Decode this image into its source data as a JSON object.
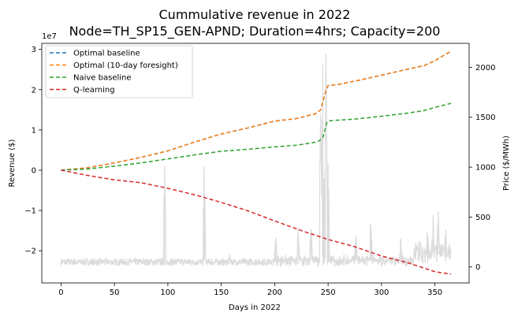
{
  "chart_data": {
    "type": "line",
    "title_line1": "Cummulative revenue in 2022",
    "title_line2": "Node=TH_SP15_GEN-APND; Duration=4hrs; Capacity=200",
    "xlabel": "Days in 2022",
    "ylabel": "Revenue ($)",
    "y2label": "Price ($/MWh)",
    "exponent_label": "1e7",
    "xlim": [
      -18,
      382
    ],
    "ylim": [
      -28000000,
      31500000
    ],
    "y2lim": [
      -160,
      2240
    ],
    "x_ticks": [
      0,
      50,
      100,
      150,
      200,
      250,
      300,
      350
    ],
    "x_tick_labels": [
      "0",
      "50",
      "100",
      "150",
      "200",
      "250",
      "300",
      "350"
    ],
    "y_ticks": [
      3,
      2,
      1,
      0,
      -1,
      -2
    ],
    "y_tick_labels": [
      "3",
      "2",
      "1",
      "0",
      "−1",
      "−2"
    ],
    "y2_ticks": [
      2000,
      1500,
      1000,
      500,
      0
    ],
    "y2_tick_labels": [
      "2000",
      "1500",
      "1000",
      "500",
      "0"
    ],
    "legend_position": "top-left",
    "series": [
      {
        "name": "Optimal baseline",
        "color": "#1f77b4",
        "style": "dashed",
        "points": [
          [
            0,
            0
          ],
          [
            25,
            600000
          ],
          [
            50,
            1800000
          ],
          [
            75,
            3200000
          ],
          [
            100,
            4800000
          ],
          [
            125,
            7000000
          ],
          [
            150,
            9000000
          ],
          [
            175,
            10500000
          ],
          [
            200,
            12200000
          ],
          [
            220,
            12800000
          ],
          [
            238,
            14000000
          ],
          [
            243,
            15000000
          ],
          [
            247,
            19000000
          ],
          [
            250,
            21000000
          ],
          [
            260,
            21300000
          ],
          [
            280,
            22400000
          ],
          [
            300,
            23600000
          ],
          [
            320,
            24800000
          ],
          [
            340,
            26000000
          ],
          [
            350,
            27200000
          ],
          [
            360,
            28800000
          ],
          [
            365,
            29500000
          ]
        ]
      },
      {
        "name": "Optimal (10-day foresight)",
        "color": "#ff7f0e",
        "style": "dashed",
        "points": [
          [
            0,
            0
          ],
          [
            25,
            600000
          ],
          [
            50,
            1800000
          ],
          [
            75,
            3200000
          ],
          [
            100,
            4800000
          ],
          [
            125,
            7000000
          ],
          [
            150,
            9000000
          ],
          [
            175,
            10500000
          ],
          [
            200,
            12200000
          ],
          [
            220,
            12800000
          ],
          [
            238,
            14000000
          ],
          [
            243,
            15000000
          ],
          [
            247,
            19000000
          ],
          [
            250,
            21000000
          ],
          [
            260,
            21300000
          ],
          [
            280,
            22400000
          ],
          [
            300,
            23600000
          ],
          [
            320,
            24800000
          ],
          [
            340,
            26000000
          ],
          [
            350,
            27200000
          ],
          [
            360,
            28800000
          ],
          [
            365,
            29500000
          ]
        ]
      },
      {
        "name": "Naive baseline",
        "color": "#2ca02c",
        "style": "dashed",
        "points": [
          [
            0,
            0
          ],
          [
            25,
            300000
          ],
          [
            50,
            1000000
          ],
          [
            75,
            1800000
          ],
          [
            100,
            2800000
          ],
          [
            125,
            3800000
          ],
          [
            150,
            4700000
          ],
          [
            175,
            5200000
          ],
          [
            200,
            5800000
          ],
          [
            220,
            6200000
          ],
          [
            240,
            7000000
          ],
          [
            245,
            8000000
          ],
          [
            249,
            12000000
          ],
          [
            252,
            12300000
          ],
          [
            275,
            12700000
          ],
          [
            300,
            13400000
          ],
          [
            325,
            14200000
          ],
          [
            340,
            14800000
          ],
          [
            350,
            15600000
          ],
          [
            365,
            16600000
          ]
        ]
      },
      {
        "name": "Q-learning",
        "color": "#d62728",
        "style": "dashed",
        "points": [
          [
            0,
            0
          ],
          [
            25,
            -1300000
          ],
          [
            50,
            -2400000
          ],
          [
            75,
            -3100000
          ],
          [
            100,
            -4500000
          ],
          [
            125,
            -6100000
          ],
          [
            150,
            -8000000
          ],
          [
            175,
            -10100000
          ],
          [
            200,
            -12600000
          ],
          [
            225,
            -15000000
          ],
          [
            250,
            -17200000
          ],
          [
            275,
            -19000000
          ],
          [
            300,
            -21300000
          ],
          [
            325,
            -23000000
          ],
          [
            350,
            -25200000
          ],
          [
            365,
            -25800000
          ]
        ]
      }
    ],
    "price_series": {
      "name": "Price",
      "color": "#dcdcdc",
      "base_level": 50,
      "spikes": [
        [
          97,
          1020
        ],
        [
          134,
          1000
        ],
        [
          158,
          150
        ],
        [
          201,
          320
        ],
        [
          222,
          380
        ],
        [
          234,
          430
        ],
        [
          243,
          1550
        ],
        [
          245,
          2050
        ],
        [
          248,
          2120
        ],
        [
          250,
          1050
        ],
        [
          276,
          350
        ],
        [
          290,
          540
        ],
        [
          318,
          300
        ],
        [
          343,
          420
        ],
        [
          348,
          630
        ],
        [
          353,
          580
        ],
        [
          360,
          400
        ]
      ]
    }
  }
}
